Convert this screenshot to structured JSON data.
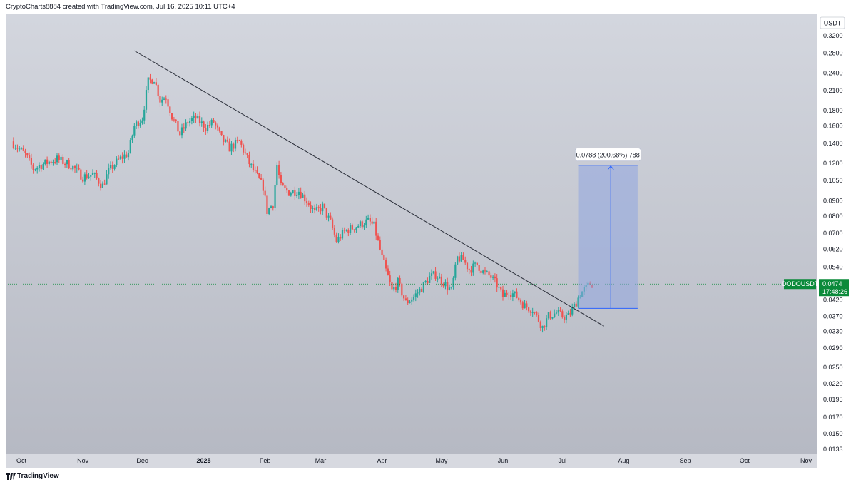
{
  "header": {
    "credit": "CryptoCharts8884 created with TradingView.com, Jul 16, 2025 10:11 UTC+4"
  },
  "footer": {
    "brand": "TradingView"
  },
  "colors": {
    "bg_top": "#d3d6de",
    "bg_bottom": "#b6b9c3",
    "up": "#26a69a",
    "down": "#ef5350",
    "trend": "#2a2e39",
    "measure_fill": "#8fa6e0",
    "measure_line": "#2962ff",
    "price_label": "#0b8a3a"
  },
  "chart_data": {
    "type": "candlestick",
    "scale": "log",
    "currency": "USDT",
    "symbol": "DODOUSDT",
    "last_price": "0.0474",
    "countdown": "17:48:26",
    "y_ticks": [
      "0.3200",
      "0.2800",
      "0.2400",
      "0.2100",
      "0.1800",
      "0.1600",
      "0.1400",
      "0.1200",
      "0.1050",
      "0.0900",
      "0.0800",
      "0.0700",
      "0.0620",
      "0.0540",
      "0.0474",
      "0.0420",
      "0.0370",
      "0.0330",
      "0.0290",
      "0.0250",
      "0.0220",
      "0.0195",
      "0.0170",
      "0.0150",
      "0.0133"
    ],
    "ylim": [
      0.0128,
      0.36
    ],
    "x_ticks": [
      {
        "label": "Oct",
        "date": "2024-10-01"
      },
      {
        "label": "Nov",
        "date": "2024-11-01"
      },
      {
        "label": "Dec",
        "date": "2024-12-01"
      },
      {
        "label": "2025",
        "date": "2025-01-01"
      },
      {
        "label": "Feb",
        "date": "2025-02-01"
      },
      {
        "label": "Mar",
        "date": "2025-03-01"
      },
      {
        "label": "Apr",
        "date": "2025-04-01"
      },
      {
        "label": "May",
        "date": "2025-05-01"
      },
      {
        "label": "Jun",
        "date": "2025-06-01"
      },
      {
        "label": "Jul",
        "date": "2025-07-01"
      },
      {
        "label": "Aug",
        "date": "2025-08-01"
      },
      {
        "label": "Sep",
        "date": "2025-09-01"
      },
      {
        "label": "Oct",
        "date": "2025-10-01"
      },
      {
        "label": "Nov",
        "date": "2025-11-01"
      }
    ],
    "price_path": [
      [
        "2024-09-27",
        0.142
      ],
      [
        "2024-10-04",
        0.128
      ],
      [
        "2024-10-08",
        0.115
      ],
      [
        "2024-10-14",
        0.12
      ],
      [
        "2024-10-20",
        0.124
      ],
      [
        "2024-10-27",
        0.118
      ],
      [
        "2024-11-02",
        0.108
      ],
      [
        "2024-11-07",
        0.11
      ],
      [
        "2024-11-12",
        0.101
      ],
      [
        "2024-11-15",
        0.113
      ],
      [
        "2024-11-20",
        0.123
      ],
      [
        "2024-11-25",
        0.13
      ],
      [
        "2024-11-28",
        0.16
      ],
      [
        "2024-12-02",
        0.17
      ],
      [
        "2024-12-05",
        0.225
      ],
      [
        "2024-12-08",
        0.23
      ],
      [
        "2024-12-11",
        0.195
      ],
      [
        "2024-12-14",
        0.2
      ],
      [
        "2024-12-17",
        0.172
      ],
      [
        "2024-12-21",
        0.15
      ],
      [
        "2024-12-25",
        0.165
      ],
      [
        "2024-12-29",
        0.17
      ],
      [
        "2025-01-03",
        0.158
      ],
      [
        "2025-01-07",
        0.165
      ],
      [
        "2025-01-11",
        0.145
      ],
      [
        "2025-01-15",
        0.135
      ],
      [
        "2025-01-20",
        0.142
      ],
      [
        "2025-01-25",
        0.12
      ],
      [
        "2025-01-29",
        0.108
      ],
      [
        "2025-02-01",
        0.1
      ],
      [
        "2025-02-03",
        0.083
      ],
      [
        "2025-02-06",
        0.088
      ],
      [
        "2025-02-08",
        0.118
      ],
      [
        "2025-02-10",
        0.1
      ],
      [
        "2025-02-14",
        0.096
      ],
      [
        "2025-02-19",
        0.097
      ],
      [
        "2025-02-23",
        0.09
      ],
      [
        "2025-02-27",
        0.082
      ],
      [
        "2025-03-03",
        0.086
      ],
      [
        "2025-03-07",
        0.076
      ],
      [
        "2025-03-10",
        0.066
      ],
      [
        "2025-03-14",
        0.071
      ],
      [
        "2025-03-20",
        0.074
      ],
      [
        "2025-03-26",
        0.077
      ],
      [
        "2025-03-29",
        0.074
      ],
      [
        "2025-04-02",
        0.058
      ],
      [
        "2025-04-05",
        0.05
      ],
      [
        "2025-04-07",
        0.045
      ],
      [
        "2025-04-10",
        0.048
      ],
      [
        "2025-04-14",
        0.041
      ],
      [
        "2025-04-18",
        0.043
      ],
      [
        "2025-04-22",
        0.046
      ],
      [
        "2025-04-26",
        0.05
      ],
      [
        "2025-04-29",
        0.051
      ],
      [
        "2025-05-03",
        0.048
      ],
      [
        "2025-05-07",
        0.045
      ],
      [
        "2025-05-10",
        0.058
      ],
      [
        "2025-05-13",
        0.057
      ],
      [
        "2025-05-16",
        0.053
      ],
      [
        "2025-05-20",
        0.055
      ],
      [
        "2025-05-23",
        0.052
      ],
      [
        "2025-05-27",
        0.05
      ],
      [
        "2025-05-30",
        0.047
      ],
      [
        "2025-06-02",
        0.043
      ],
      [
        "2025-06-05",
        0.045
      ],
      [
        "2025-06-09",
        0.043
      ],
      [
        "2025-06-13",
        0.04
      ],
      [
        "2025-06-17",
        0.039
      ],
      [
        "2025-06-20",
        0.036
      ],
      [
        "2025-06-22",
        0.034
      ],
      [
        "2025-06-25",
        0.037
      ],
      [
        "2025-06-29",
        0.038
      ],
      [
        "2025-07-02",
        0.037
      ],
      [
        "2025-07-05",
        0.037
      ],
      [
        "2025-07-08",
        0.04
      ],
      [
        "2025-07-11",
        0.044
      ],
      [
        "2025-07-14",
        0.046
      ],
      [
        "2025-07-16",
        0.0474
      ]
    ],
    "trendline": [
      {
        "date": "2024-11-27",
        "price": 0.285
      },
      {
        "date": "2025-07-22",
        "price": 0.0343
      }
    ],
    "measure": {
      "label": "0.0788 (200.68%) 788",
      "from_price": 0.0393,
      "to_price": 0.1181,
      "start_date": "2025-07-09",
      "end_date": "2025-08-08"
    }
  }
}
